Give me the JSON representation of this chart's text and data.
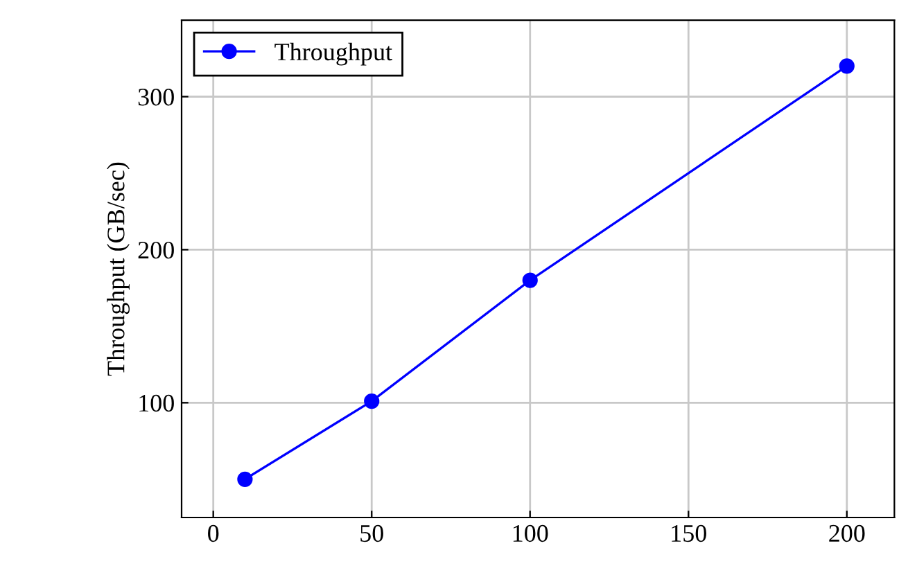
{
  "chart_data": {
    "type": "line",
    "ylabel": "Throughput (GB/sec)",
    "x": [
      10,
      50,
      100,
      200
    ],
    "series": [
      {
        "name": "Throughput",
        "color": "#0000ff",
        "values": [
          50,
          101,
          180,
          320
        ]
      }
    ],
    "xlim": [
      -10,
      215
    ],
    "ylim": [
      25,
      350
    ],
    "xticks": [
      0,
      50,
      100,
      150,
      200
    ],
    "yticks": [
      100,
      200,
      300
    ],
    "grid": true,
    "legend": "top left",
    "marker": "circle",
    "line_style": "solid"
  }
}
